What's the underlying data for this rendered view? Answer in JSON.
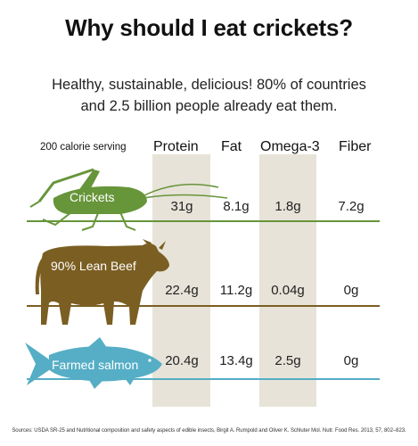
{
  "title": "Why should I eat crickets?",
  "subtitle_line1": "Healthy, sustainable, delicious!  80% of countries",
  "subtitle_line2": "and 2.5 billion people already eat them.",
  "serving_label": "200 calorie serving",
  "columns": [
    "Protein",
    "Fat",
    "Omega-3",
    "Fiber"
  ],
  "rows": [
    {
      "label": "Crickets",
      "icon": "cricket-icon",
      "color": "#67953a",
      "values": [
        "31g",
        "8.1g",
        "1.8g",
        "7.2g"
      ]
    },
    {
      "label": "90% Lean Beef",
      "icon": "cow-icon",
      "color": "#7b5e22",
      "values": [
        "22.4g",
        "11.2g",
        "0.04g",
        "0g"
      ]
    },
    {
      "label": "Farmed salmon",
      "icon": "salmon-icon",
      "color": "#55aec5",
      "values": [
        "20.4g",
        "13.4g",
        "2.5g",
        "0g"
      ]
    }
  ],
  "source": "Sources: USDA SR-25 and Nutritional composition and safety aspects of edible insects,  Birgit A. Rumpold and Oliver K. Schluter Mol. Nutr. Food Res. 2013, 57, 802–823.",
  "colors": {
    "band": "#e7e3d8",
    "cricket": "#67953a",
    "beef": "#7b5e22",
    "salmon": "#55aec5"
  }
}
